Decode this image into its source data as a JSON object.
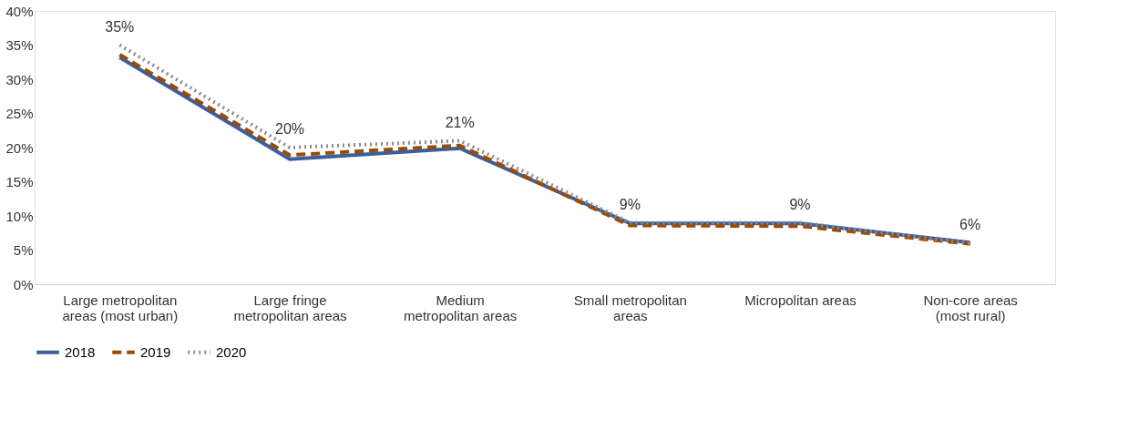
{
  "chart_data": {
    "type": "line",
    "categories": [
      "Large metropolitan areas (most urban)",
      "Large fringe metropolitan areas",
      "Medium metropolitan areas",
      "Small metropolitan areas",
      "Micropolitan areas",
      "Non-core areas (most rural)"
    ],
    "series": [
      {
        "name": "2018",
        "color": "#3a5f9b",
        "line_style": "solid",
        "values": [
          33.2,
          18.3,
          19.9,
          8.9,
          8.9,
          6.1
        ]
      },
      {
        "name": "2019",
        "color": "#9c4a04",
        "line_style": "dashed",
        "values": [
          33.6,
          18.9,
          20.3,
          8.6,
          8.5,
          5.9
        ]
      },
      {
        "name": "2020",
        "color": "#8c8c8c",
        "line_style": "dotted",
        "values": [
          35,
          20,
          21,
          9,
          9,
          6
        ],
        "value_labels": [
          "35%",
          "20%",
          "21%",
          "9%",
          "9%",
          "6%"
        ]
      }
    ],
    "ylim": [
      0,
      40
    ],
    "yticks": [
      {
        "value": 0,
        "label": "0%"
      },
      {
        "value": 5,
        "label": "5%"
      },
      {
        "value": 10,
        "label": "10%"
      },
      {
        "value": 15,
        "label": "15%"
      },
      {
        "value": 20,
        "label": "20%"
      },
      {
        "value": 25,
        "label": "25%"
      },
      {
        "value": 30,
        "label": "30%"
      },
      {
        "value": 35,
        "label": "35%"
      },
      {
        "value": 40,
        "label": "40%"
      }
    ],
    "grid": false,
    "legend": "bottom",
    "marker": "none"
  }
}
